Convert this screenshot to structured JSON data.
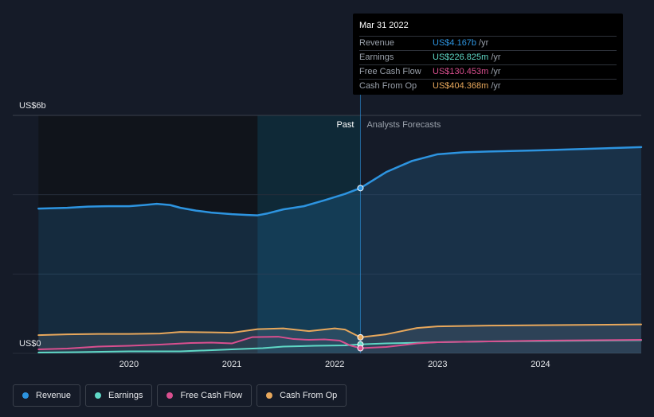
{
  "chart_data": {
    "type": "line",
    "y_axis": {
      "top_label": "US$6b",
      "bottom_label": "US$0",
      "ylim": [
        0,
        6
      ],
      "unit": "US$ b"
    },
    "x_axis": {
      "ticks": [
        "2020",
        "2021",
        "2022",
        "2023",
        "2024"
      ],
      "tick_values": [
        2020,
        2021,
        2022,
        2023,
        2024
      ],
      "xlim": [
        2018.87,
        2024.98
      ]
    },
    "regions": {
      "past_label": "Past",
      "forecast_label": "Analysts Forecasts",
      "divider_x": 2022.25
    },
    "series": [
      {
        "name": "Revenue",
        "color": "#2d94e0",
        "fill": true,
        "x": [
          2019.12,
          2019.4,
          2019.6,
          2019.8,
          2020.0,
          2020.15,
          2020.27,
          2020.4,
          2020.5,
          2020.65,
          2020.8,
          2021.0,
          2021.15,
          2021.25,
          2021.35,
          2021.5,
          2021.7,
          2021.9,
          2022.1,
          2022.25,
          2022.5,
          2022.75,
          2023.0,
          2023.25,
          2023.5,
          2024.0,
          2024.5,
          2024.98
        ],
        "y": [
          3.65,
          3.67,
          3.7,
          3.71,
          3.71,
          3.74,
          3.77,
          3.74,
          3.67,
          3.6,
          3.55,
          3.51,
          3.49,
          3.48,
          3.53,
          3.63,
          3.71,
          3.86,
          4.02,
          4.167,
          4.57,
          4.85,
          5.02,
          5.07,
          5.09,
          5.12,
          5.16,
          5.2
        ]
      },
      {
        "name": "Earnings",
        "color": "#5fd8c6",
        "fill": false,
        "x": [
          2019.12,
          2019.5,
          2020.0,
          2020.5,
          2021.0,
          2021.3,
          2021.5,
          2021.8,
          2022.1,
          2022.25,
          2022.5,
          2023.0,
          2023.5,
          2024.0,
          2024.98
        ],
        "y": [
          0.02,
          0.03,
          0.05,
          0.05,
          0.1,
          0.13,
          0.17,
          0.19,
          0.2,
          0.227,
          0.25,
          0.28,
          0.3,
          0.31,
          0.33
        ]
      },
      {
        "name": "Free Cash Flow",
        "color": "#d94f8f",
        "fill": false,
        "x": [
          2019.12,
          2019.4,
          2019.7,
          2020.0,
          2020.3,
          2020.6,
          2020.8,
          2021.0,
          2021.2,
          2021.45,
          2021.6,
          2021.75,
          2021.9,
          2022.05,
          2022.15,
          2022.25,
          2022.5,
          2022.8,
          2023.0,
          2023.5,
          2024.0,
          2024.98
        ],
        "y": [
          0.1,
          0.12,
          0.17,
          0.19,
          0.22,
          0.26,
          0.27,
          0.25,
          0.41,
          0.42,
          0.36,
          0.34,
          0.35,
          0.32,
          0.2,
          0.13,
          0.16,
          0.25,
          0.28,
          0.3,
          0.32,
          0.34
        ]
      },
      {
        "name": "Cash From Op",
        "color": "#e8a85c",
        "fill": false,
        "x": [
          2019.12,
          2019.4,
          2019.7,
          2020.0,
          2020.3,
          2020.5,
          2020.8,
          2021.0,
          2021.25,
          2021.5,
          2021.75,
          2022.0,
          2022.1,
          2022.25,
          2022.5,
          2022.8,
          2023.0,
          2023.5,
          2024.0,
          2024.98
        ],
        "y": [
          0.46,
          0.48,
          0.49,
          0.49,
          0.5,
          0.54,
          0.53,
          0.52,
          0.61,
          0.63,
          0.56,
          0.63,
          0.6,
          0.404,
          0.48,
          0.64,
          0.68,
          0.7,
          0.71,
          0.73
        ]
      }
    ],
    "highlight_x": 2022.25,
    "legend": [
      "Revenue",
      "Earnings",
      "Free Cash Flow",
      "Cash From Op"
    ],
    "grid": true
  },
  "tooltip": {
    "date": "Mar 31 2022",
    "unit": "/yr",
    "rows": [
      {
        "label": "Revenue",
        "value": "US$4.167b",
        "color": "#2d94e0"
      },
      {
        "label": "Earnings",
        "value": "US$226.825m",
        "color": "#5fd8c6"
      },
      {
        "label": "Free Cash Flow",
        "value": "US$130.453m",
        "color": "#d94f8f"
      },
      {
        "label": "Cash From Op",
        "value": "US$404.368m",
        "color": "#e8a85c"
      }
    ]
  }
}
